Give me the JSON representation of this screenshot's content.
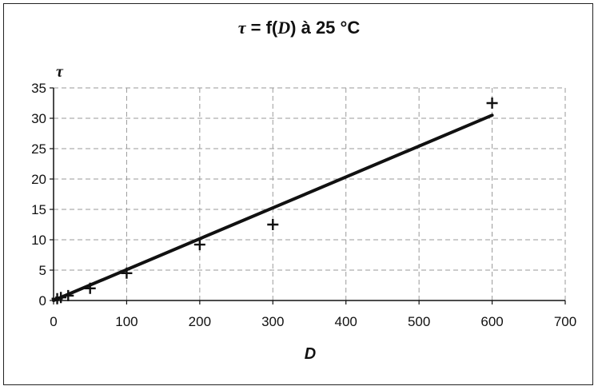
{
  "chart_data": {
    "type": "scatter",
    "title_parts": {
      "symbol": "τ",
      "middle": " = f(",
      "variable": "D",
      "end": ") à 25 °C"
    },
    "xlabel": "D",
    "ylabel": "τ",
    "xlim": [
      0,
      700
    ],
    "ylim": [
      0,
      35
    ],
    "x_ticks": [
      0,
      100,
      200,
      300,
      400,
      500,
      600,
      700
    ],
    "y_ticks": [
      0,
      5,
      10,
      15,
      20,
      25,
      30,
      35
    ],
    "grid": true,
    "legend": "none",
    "series": [
      {
        "marker": "plus",
        "x": [
          5,
          10,
          20,
          50,
          100,
          200,
          300,
          600
        ],
        "y": [
          0.3,
          0.5,
          0.8,
          2,
          4.5,
          9.2,
          12.5,
          32.5
        ]
      }
    ],
    "trendline": {
      "x": [
        0,
        600
      ],
      "y": [
        0,
        30.5
      ]
    },
    "colors": {
      "line": "#111111",
      "marker": "#111111",
      "grid": "#9a9a9a"
    }
  }
}
